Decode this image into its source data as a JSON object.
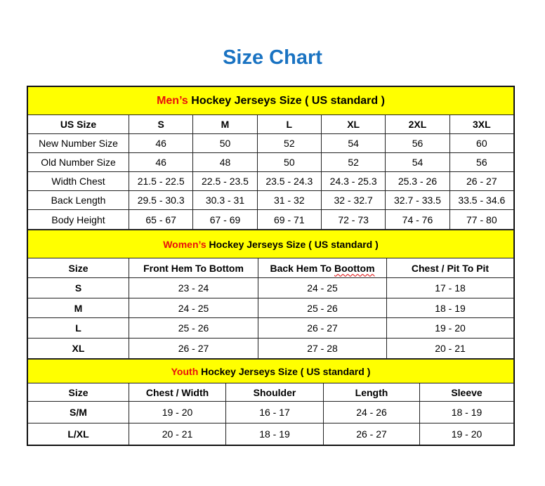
{
  "title": "Size Chart",
  "colors": {
    "title": "#1a73c2",
    "band": "#ffff00",
    "accent": "#e8100c"
  },
  "men": {
    "title_accent": "Men’s",
    "title_rest": " Hockey Jerseys Size ( US standard )",
    "headers": [
      "US Size",
      "S",
      "M",
      "L",
      "XL",
      "2XL",
      "3XL"
    ],
    "rows": [
      [
        "New Number Size",
        "46",
        "50",
        "52",
        "54",
        "56",
        "60"
      ],
      [
        "Old Number Size",
        "46",
        "48",
        "50",
        "52",
        "54",
        "56"
      ],
      [
        "Width Chest",
        "21.5 - 22.5",
        "22.5 - 23.5",
        "23.5 - 24.3",
        "24.3 - 25.3",
        "25.3 - 26",
        "26 - 27"
      ],
      [
        "Back Length",
        "29.5 - 30.3",
        "30.3 - 31",
        "31 - 32",
        "32 - 32.7",
        "32.7 - 33.5",
        "33.5 - 34.6"
      ],
      [
        "Body Height",
        "65 - 67",
        "67 - 69",
        "69 - 71",
        "72 - 73",
        "74 - 76",
        "77 - 80"
      ]
    ]
  },
  "women": {
    "title_accent": "Women’s",
    "title_rest": " Hockey Jerseys Size ( US standard )",
    "headers": [
      "Size",
      "Front Hem To Bottom",
      "Back Hem To Boottom",
      "Chest / Pit To Pit"
    ],
    "rows": [
      [
        "S",
        "23 - 24",
        "24 - 25",
        "17 - 18"
      ],
      [
        "M",
        "24 - 25",
        "25 - 26",
        "18 - 19"
      ],
      [
        "L",
        "25 - 26",
        "26 - 27",
        "19 - 20"
      ],
      [
        "XL",
        "26 - 27",
        "27 - 28",
        "20 - 21"
      ]
    ]
  },
  "youth": {
    "title_accent": "Youth",
    "title_rest": " Hockey Jerseys Size ( US standard )",
    "headers": [
      "Size",
      "Chest / Width",
      "Shoulder",
      "Length",
      "Sleeve"
    ],
    "rows": [
      [
        "S/M",
        "19 - 20",
        "16 - 17",
        "24 - 26",
        "18 - 19"
      ],
      [
        "L/XL",
        "20 - 21",
        "18 - 19",
        "26 - 27",
        "19 - 20"
      ]
    ]
  }
}
